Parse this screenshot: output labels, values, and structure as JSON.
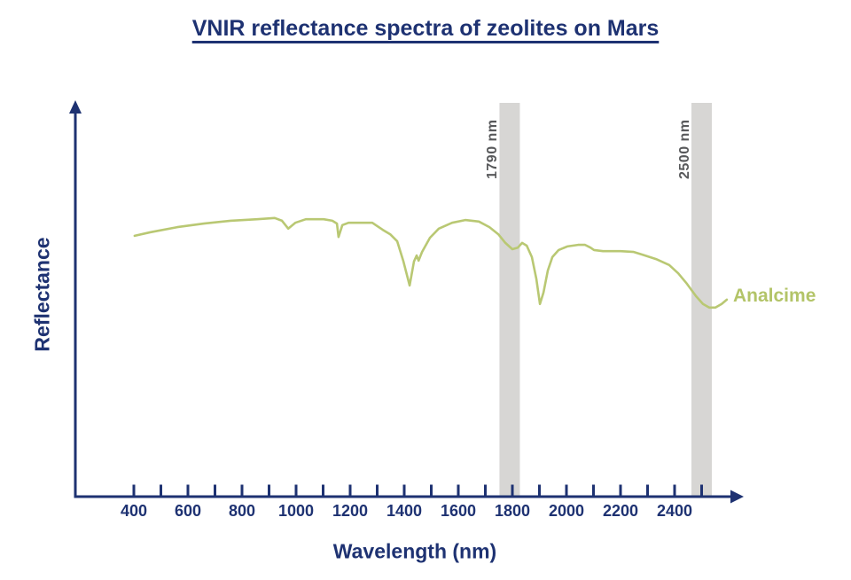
{
  "title": "VNIR reflectance spectra of zeolites on Mars",
  "colors": {
    "navy": "#1e3272",
    "curve": "#b9c873",
    "band_fill": "#d7d6d4",
    "band_label": "#58595b"
  },
  "chart_data": {
    "type": "line",
    "title": "VNIR reflectance spectra of zeolites on Mars",
    "xlabel": "Wavelength (nm)",
    "ylabel": "Reflectance",
    "x_range_nm": [
      400,
      2600
    ],
    "y_axis_units": "relative reflectance (no ticks shown)",
    "grid": false,
    "legend_position": "right-of-curve-inline",
    "x_axis": {
      "ticks": [
        400,
        500,
        600,
        700,
        800,
        900,
        1000,
        1100,
        1200,
        1300,
        1400,
        1500,
        1600,
        1700,
        1800,
        1900,
        2000,
        2100,
        2200,
        2300,
        2400,
        2500
      ],
      "labeled": [
        400,
        600,
        800,
        1000,
        1200,
        1400,
        1600,
        1800,
        2000,
        2200,
        2400
      ]
    },
    "bands": [
      {
        "label": "1790 nm",
        "nm": 1790
      },
      {
        "label": "2500 nm",
        "nm": 2500
      }
    ],
    "series": [
      {
        "name": "Analcime",
        "color": "#b9c873",
        "points": [
          [
            403,
            0.661
          ],
          [
            462,
            0.67
          ],
          [
            561,
            0.683
          ],
          [
            659,
            0.692
          ],
          [
            757,
            0.699
          ],
          [
            856,
            0.703
          ],
          [
            921,
            0.706
          ],
          [
            948,
            0.699
          ],
          [
            971,
            0.679
          ],
          [
            997,
            0.694
          ],
          [
            1036,
            0.703
          ],
          [
            1102,
            0.703
          ],
          [
            1134,
            0.699
          ],
          [
            1151,
            0.692
          ],
          [
            1157,
            0.658
          ],
          [
            1171,
            0.688
          ],
          [
            1194,
            0.694
          ],
          [
            1282,
            0.694
          ],
          [
            1321,
            0.676
          ],
          [
            1348,
            0.665
          ],
          [
            1374,
            0.647
          ],
          [
            1397,
            0.596
          ],
          [
            1420,
            0.535
          ],
          [
            1436,
            0.596
          ],
          [
            1446,
            0.611
          ],
          [
            1453,
            0.598
          ],
          [
            1466,
            0.62
          ],
          [
            1495,
            0.656
          ],
          [
            1528,
            0.679
          ],
          [
            1577,
            0.694
          ],
          [
            1626,
            0.701
          ],
          [
            1676,
            0.697
          ],
          [
            1715,
            0.683
          ],
          [
            1748,
            0.665
          ],
          [
            1774,
            0.643
          ],
          [
            1800,
            0.627
          ],
          [
            1820,
            0.631
          ],
          [
            1836,
            0.643
          ],
          [
            1853,
            0.636
          ],
          [
            1872,
            0.607
          ],
          [
            1889,
            0.551
          ],
          [
            1902,
            0.488
          ],
          [
            1915,
            0.517
          ],
          [
            1931,
            0.573
          ],
          [
            1948,
            0.607
          ],
          [
            1971,
            0.625
          ],
          [
            2003,
            0.634
          ],
          [
            2043,
            0.638
          ],
          [
            2069,
            0.638
          ],
          [
            2089,
            0.631
          ],
          [
            2102,
            0.625
          ],
          [
            2135,
            0.622
          ],
          [
            2200,
            0.622
          ],
          [
            2249,
            0.62
          ],
          [
            2282,
            0.613
          ],
          [
            2331,
            0.602
          ],
          [
            2380,
            0.587
          ],
          [
            2413,
            0.566
          ],
          [
            2446,
            0.539
          ],
          [
            2479,
            0.508
          ],
          [
            2505,
            0.488
          ],
          [
            2528,
            0.479
          ],
          [
            2551,
            0.479
          ],
          [
            2574,
            0.488
          ],
          [
            2593,
            0.499
          ]
        ]
      }
    ]
  }
}
